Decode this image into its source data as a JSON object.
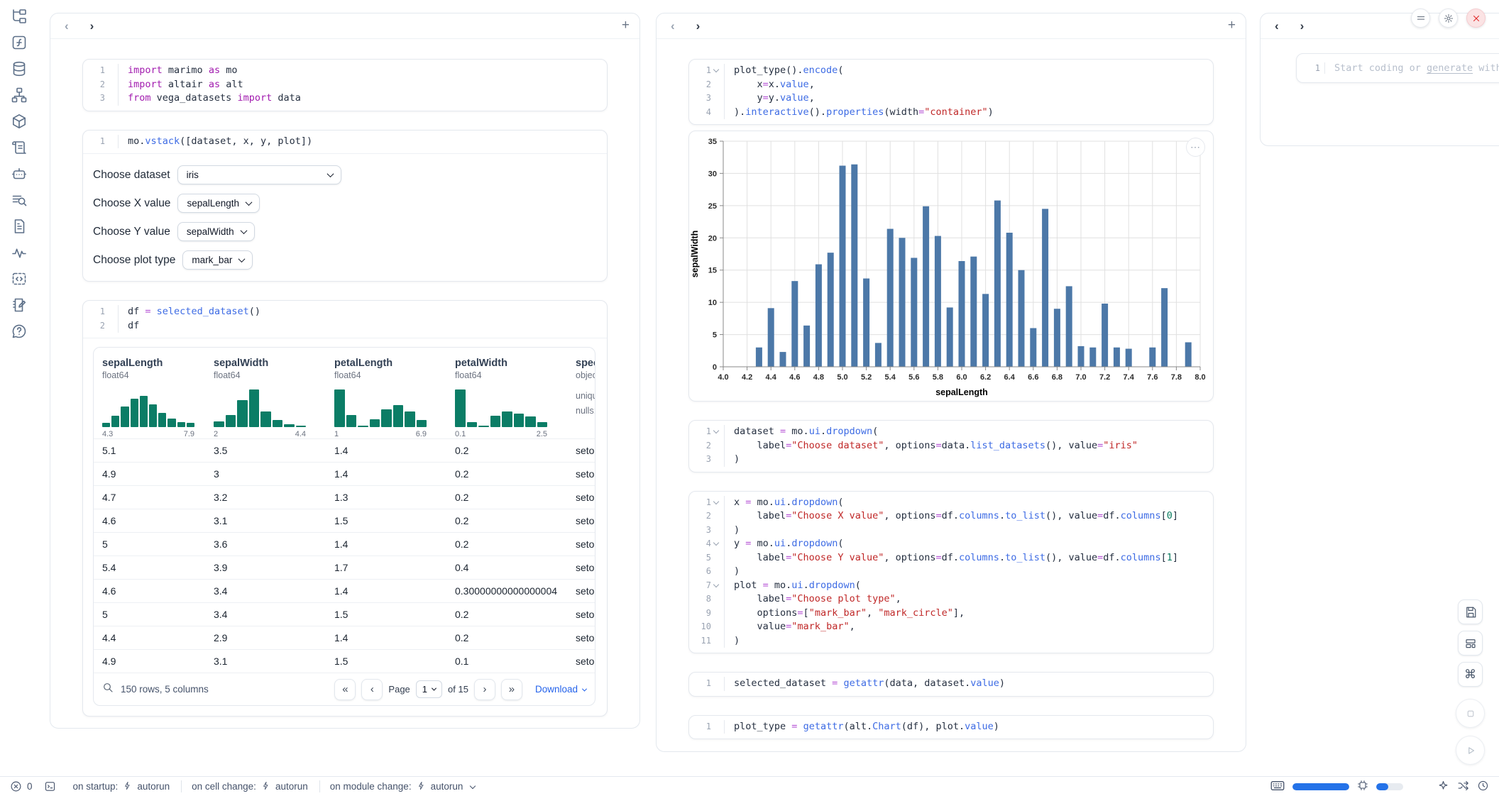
{
  "sidebar": {
    "icons": [
      "file-tree",
      "functions",
      "database",
      "dependency-graph",
      "packages",
      "script",
      "ai-chat",
      "logs-search",
      "documentation",
      "tracing",
      "snippets",
      "scratchpad",
      "help"
    ]
  },
  "left_panel": {
    "cells": {
      "imports": [
        {
          "tokens": [
            [
              "k",
              "import"
            ],
            [
              "p",
              " marimo "
            ],
            [
              "k",
              "as"
            ],
            [
              "p",
              " mo"
            ]
          ]
        },
        {
          "tokens": [
            [
              "k",
              "import"
            ],
            [
              "p",
              " altair "
            ],
            [
              "k",
              "as"
            ],
            [
              "p",
              " alt"
            ]
          ]
        },
        {
          "tokens": [
            [
              "k",
              "from"
            ],
            [
              "p",
              " vega_datasets "
            ],
            [
              "k",
              "import"
            ],
            [
              "p",
              " data"
            ]
          ]
        }
      ],
      "vstack": [
        {
          "tokens": [
            [
              "p",
              "mo."
            ],
            [
              "f",
              "vstack"
            ],
            [
              "p",
              "([dataset, x, y, plot])"
            ]
          ]
        }
      ],
      "df": [
        {
          "tokens": [
            [
              "p",
              "df "
            ],
            [
              "o",
              "="
            ],
            [
              "p",
              " "
            ],
            [
              "f",
              "selected_dataset"
            ],
            [
              "p",
              "()"
            ]
          ]
        },
        {
          "tokens": [
            [
              "p",
              "df"
            ]
          ]
        }
      ]
    },
    "controls": [
      {
        "label": "Choose dataset",
        "value": "iris"
      },
      {
        "label": "Choose X value",
        "value": "sepalLength"
      },
      {
        "label": "Choose Y value",
        "value": "sepalWidth"
      },
      {
        "label": "Choose plot type",
        "value": "mark_bar"
      }
    ],
    "table": {
      "columns": [
        {
          "name": "sepalLength",
          "dtype": "float64",
          "min": "4.3",
          "max": "7.9",
          "hist": [
            10,
            28,
            52,
            72,
            78,
            58,
            35,
            22,
            12,
            10
          ]
        },
        {
          "name": "sepalWidth",
          "dtype": "float64",
          "min": "2",
          "max": "4.4",
          "hist": [
            14,
            30,
            68,
            95,
            40,
            18,
            8,
            4
          ]
        },
        {
          "name": "petalLength",
          "dtype": "float64",
          "min": "1",
          "max": "6.9",
          "hist": [
            95,
            30,
            3,
            20,
            45,
            55,
            40,
            18
          ]
        },
        {
          "name": "petalWidth",
          "dtype": "float64",
          "min": "0.1",
          "max": "2.5",
          "hist": [
            95,
            12,
            3,
            28,
            40,
            34,
            26,
            12
          ]
        },
        {
          "name": "species",
          "dtype": "object",
          "stats": [
            "unique",
            "nulls:"
          ]
        }
      ],
      "rows": [
        [
          "5.1",
          "3.5",
          "1.4",
          "0.2",
          "setosa"
        ],
        [
          "4.9",
          "3",
          "1.4",
          "0.2",
          "setosa"
        ],
        [
          "4.7",
          "3.2",
          "1.3",
          "0.2",
          "setosa"
        ],
        [
          "4.6",
          "3.1",
          "1.5",
          "0.2",
          "setosa"
        ],
        [
          "5",
          "3.6",
          "1.4",
          "0.2",
          "setosa"
        ],
        [
          "5.4",
          "3.9",
          "1.7",
          "0.4",
          "setosa"
        ],
        [
          "4.6",
          "3.4",
          "1.4",
          "0.30000000000000004",
          "setosa"
        ],
        [
          "5",
          "3.4",
          "1.5",
          "0.2",
          "setosa"
        ],
        [
          "4.4",
          "2.9",
          "1.4",
          "0.2",
          "setosa"
        ],
        [
          "4.9",
          "3.1",
          "1.5",
          "0.1",
          "setosa"
        ]
      ],
      "footer": {
        "summary": "150 rows, 5 columns",
        "first": "«",
        "prev": "‹",
        "page_label": "Page",
        "page_value": "1",
        "of_label": "of 15",
        "next": "›",
        "last": "»",
        "download_label": "Download"
      }
    }
  },
  "mid_panel": {
    "cells": {
      "encode": [
        {
          "fold": true,
          "tokens": [
            [
              "p",
              "plot_type()."
            ],
            [
              "f",
              "encode"
            ],
            [
              "p",
              "("
            ]
          ]
        },
        {
          "tokens": [
            [
              "p",
              "    x"
            ],
            [
              "o",
              "="
            ],
            [
              "p",
              "x."
            ],
            [
              "f",
              "value"
            ],
            [
              "p",
              ","
            ]
          ]
        },
        {
          "tokens": [
            [
              "p",
              "    y"
            ],
            [
              "o",
              "="
            ],
            [
              "p",
              "y."
            ],
            [
              "f",
              "value"
            ],
            [
              "p",
              ","
            ]
          ]
        },
        {
          "tokens": [
            [
              "p",
              ")."
            ],
            [
              "f",
              "interactive"
            ],
            [
              "p",
              "()."
            ],
            [
              "f",
              "properties"
            ],
            [
              "p",
              "(width"
            ],
            [
              "o",
              "="
            ],
            [
              "s",
              "\"container\""
            ],
            [
              "p",
              ")"
            ]
          ]
        }
      ],
      "dataset": [
        {
          "fold": true,
          "tokens": [
            [
              "p",
              "dataset "
            ],
            [
              "o",
              "="
            ],
            [
              "p",
              " mo."
            ],
            [
              "f",
              "ui"
            ],
            [
              "p",
              "."
            ],
            [
              "f",
              "dropdown"
            ],
            [
              "p",
              "("
            ]
          ]
        },
        {
          "tokens": [
            [
              "p",
              "    label"
            ],
            [
              "o",
              "="
            ],
            [
              "s",
              "\"Choose dataset\""
            ],
            [
              "p",
              ", options"
            ],
            [
              "o",
              "="
            ],
            [
              "p",
              "data."
            ],
            [
              "f",
              "list_datasets"
            ],
            [
              "p",
              "(), value"
            ],
            [
              "o",
              "="
            ],
            [
              "s",
              "\"iris\""
            ]
          ]
        },
        {
          "tokens": [
            [
              "p",
              ")"
            ]
          ]
        }
      ],
      "xyplot": [
        {
          "fold": true,
          "tokens": [
            [
              "p",
              "x "
            ],
            [
              "o",
              "="
            ],
            [
              "p",
              " mo."
            ],
            [
              "f",
              "ui"
            ],
            [
              "p",
              "."
            ],
            [
              "f",
              "dropdown"
            ],
            [
              "p",
              "("
            ]
          ]
        },
        {
          "tokens": [
            [
              "p",
              "    label"
            ],
            [
              "o",
              "="
            ],
            [
              "s",
              "\"Choose X value\""
            ],
            [
              "p",
              ", options"
            ],
            [
              "o",
              "="
            ],
            [
              "p",
              "df."
            ],
            [
              "f",
              "columns"
            ],
            [
              "p",
              "."
            ],
            [
              "f",
              "to_list"
            ],
            [
              "p",
              "(), value"
            ],
            [
              "o",
              "="
            ],
            [
              "p",
              "df."
            ],
            [
              "f",
              "columns"
            ],
            [
              "p",
              "["
            ],
            [
              "n",
              "0"
            ],
            [
              "p",
              "]"
            ]
          ]
        },
        {
          "tokens": [
            [
              "p",
              ")"
            ]
          ]
        },
        {
          "fold": true,
          "tokens": [
            [
              "p",
              "y "
            ],
            [
              "o",
              "="
            ],
            [
              "p",
              " mo."
            ],
            [
              "f",
              "ui"
            ],
            [
              "p",
              "."
            ],
            [
              "f",
              "dropdown"
            ],
            [
              "p",
              "("
            ]
          ]
        },
        {
          "tokens": [
            [
              "p",
              "    label"
            ],
            [
              "o",
              "="
            ],
            [
              "s",
              "\"Choose Y value\""
            ],
            [
              "p",
              ", options"
            ],
            [
              "o",
              "="
            ],
            [
              "p",
              "df."
            ],
            [
              "f",
              "columns"
            ],
            [
              "p",
              "."
            ],
            [
              "f",
              "to_list"
            ],
            [
              "p",
              "(), value"
            ],
            [
              "o",
              "="
            ],
            [
              "p",
              "df."
            ],
            [
              "f",
              "columns"
            ],
            [
              "p",
              "["
            ],
            [
              "n",
              "1"
            ],
            [
              "p",
              "]"
            ]
          ]
        },
        {
          "tokens": [
            [
              "p",
              ")"
            ]
          ]
        },
        {
          "fold": true,
          "tokens": [
            [
              "p",
              "plot "
            ],
            [
              "o",
              "="
            ],
            [
              "p",
              " mo."
            ],
            [
              "f",
              "ui"
            ],
            [
              "p",
              "."
            ],
            [
              "f",
              "dropdown"
            ],
            [
              "p",
              "("
            ]
          ]
        },
        {
          "tokens": [
            [
              "p",
              "    label"
            ],
            [
              "o",
              "="
            ],
            [
              "s",
              "\"Choose plot type\""
            ],
            [
              "p",
              ","
            ]
          ]
        },
        {
          "tokens": [
            [
              "p",
              "    options"
            ],
            [
              "o",
              "="
            ],
            [
              "p",
              "["
            ],
            [
              "s",
              "\"mark_bar\""
            ],
            [
              "p",
              ", "
            ],
            [
              "s",
              "\"mark_circle\""
            ],
            [
              "p",
              "],"
            ]
          ]
        },
        {
          "tokens": [
            [
              "p",
              "    value"
            ],
            [
              "o",
              "="
            ],
            [
              "s",
              "\"mark_bar\""
            ],
            [
              "p",
              ","
            ]
          ]
        },
        {
          "tokens": [
            [
              "p",
              ")"
            ]
          ]
        }
      ],
      "selected": [
        {
          "tokens": [
            [
              "p",
              "selected_dataset "
            ],
            [
              "o",
              "="
            ],
            [
              "p",
              " "
            ],
            [
              "f",
              "getattr"
            ],
            [
              "p",
              "(data, dataset."
            ],
            [
              "f",
              "value"
            ],
            [
              "p",
              ")"
            ]
          ]
        }
      ],
      "plottype": [
        {
          "tokens": [
            [
              "p",
              "plot_type "
            ],
            [
              "o",
              "="
            ],
            [
              "p",
              " "
            ],
            [
              "f",
              "getattr"
            ],
            [
              "p",
              "(alt."
            ],
            [
              "f",
              "Chart"
            ],
            [
              "p",
              "(df), plot."
            ],
            [
              "f",
              "value"
            ],
            [
              "p",
              ")"
            ]
          ]
        }
      ]
    },
    "chart_actions_glyph": "⋯"
  },
  "chart_data": {
    "type": "bar",
    "title": "",
    "xlabel": "sepalLength",
    "ylabel": "sepalWidth",
    "xlim": [
      4.0,
      8.0
    ],
    "ylim": [
      0,
      35
    ],
    "x_tick_step": 0.2,
    "y_tick_step": 5,
    "grid": true,
    "bar_color": "#4c78a8",
    "x": [
      4.3,
      4.4,
      4.5,
      4.6,
      4.7,
      4.8,
      4.9,
      5.0,
      5.1,
      5.2,
      5.3,
      5.4,
      5.5,
      5.6,
      5.7,
      5.8,
      5.9,
      6.0,
      6.1,
      6.2,
      6.3,
      6.4,
      6.5,
      6.6,
      6.7,
      6.8,
      6.9,
      7.0,
      7.1,
      7.2,
      7.3,
      7.4,
      7.6,
      7.7,
      7.9
    ],
    "values": [
      3.0,
      9.1,
      2.3,
      13.3,
      6.4,
      15.9,
      17.7,
      31.2,
      31.4,
      13.7,
      3.7,
      21.4,
      20.0,
      16.9,
      24.9,
      20.3,
      9.2,
      16.4,
      17.1,
      11.3,
      25.8,
      20.8,
      15.0,
      6.0,
      24.5,
      9.0,
      12.5,
      3.2,
      3.0,
      9.8,
      3.0,
      2.8,
      3.0,
      12.2,
      3.8
    ]
  },
  "right_panel": {
    "line_number": "1",
    "placeholder_pre": "Start coding or ",
    "placeholder_link": "generate",
    "placeholder_post": " with"
  },
  "statusbar": {
    "error_count": "0",
    "run_settings": [
      {
        "label": "on startup:",
        "value": "autorun"
      },
      {
        "label": "on cell change:",
        "value": "autorun"
      },
      {
        "label": "on module change:",
        "value": "autorun"
      }
    ],
    "meters": {
      "memory_fill": 100,
      "cpu_fill": 45
    }
  }
}
